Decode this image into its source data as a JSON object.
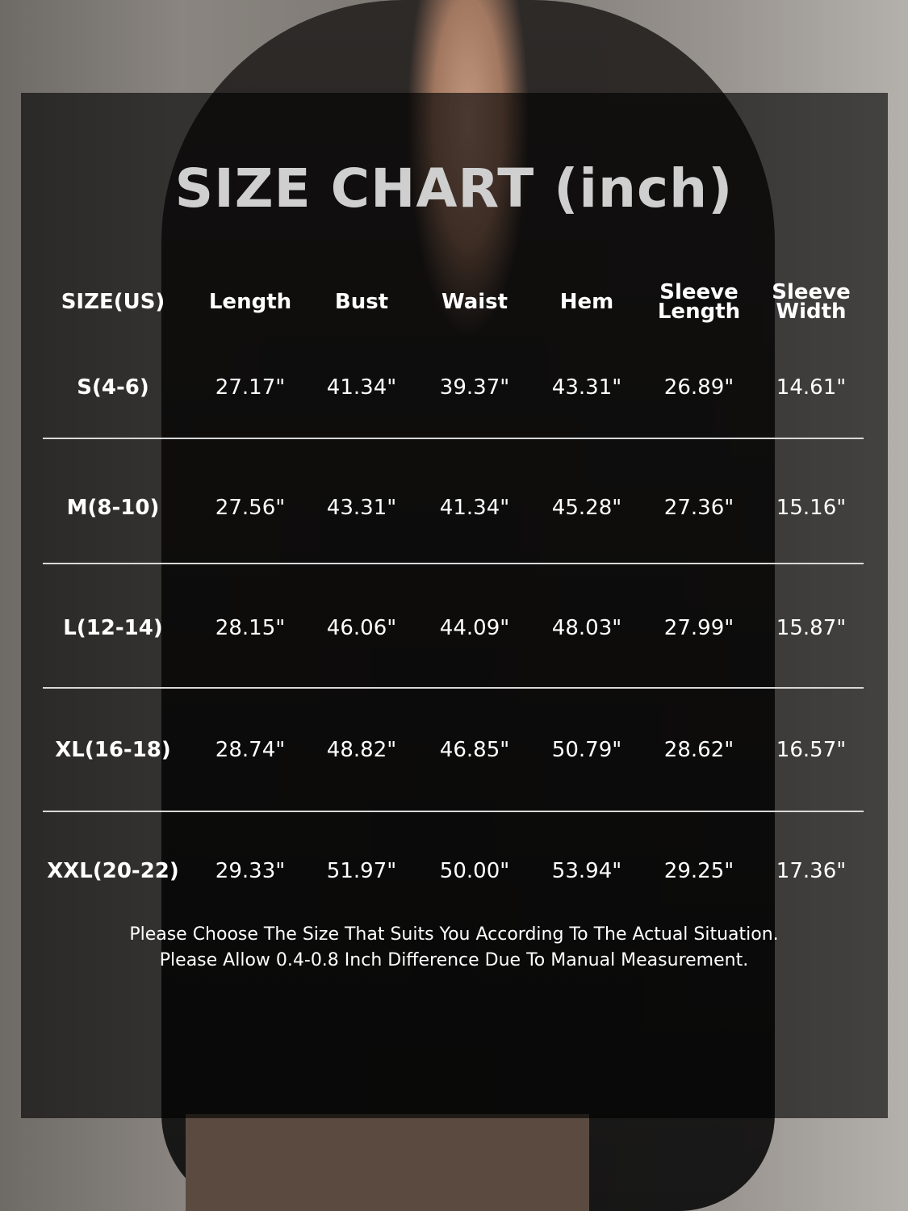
{
  "title": "SIZE CHART (inch)",
  "columns": [
    "SIZE(US)",
    "Length",
    "Bust",
    "Waist",
    "Hem",
    "Sleeve\nLength",
    "Sleeve\nWidth"
  ],
  "rows": [
    [
      "S(4-6)",
      "27.17\"",
      "41.34\"",
      "39.37\"",
      "43.31\"",
      "26.89\"",
      "14.61\""
    ],
    [
      "M(8-10)",
      "27.56\"",
      "43.31\"",
      "41.34\"",
      "45.28\"",
      "27.36\"",
      "15.16\""
    ],
    [
      "L(12-14)",
      "28.15\"",
      "46.06\"",
      "44.09\"",
      "48.03\"",
      "27.99\"",
      "15.87\""
    ],
    [
      "XL(16-18)",
      "28.74\"",
      "48.82\"",
      "46.85\"",
      "50.79\"",
      "28.62\"",
      "16.57\""
    ],
    [
      "XXL(20-22)",
      "29.33\"",
      "51.97\"",
      "50.00\"",
      "53.94\"",
      "29.25\"",
      "17.36\""
    ]
  ],
  "notes": [
    "Please Choose The Size That Suits You According To The Actual Situation.",
    "Please Allow 0.4-0.8 Inch Difference Due To Manual Measurement."
  ]
}
